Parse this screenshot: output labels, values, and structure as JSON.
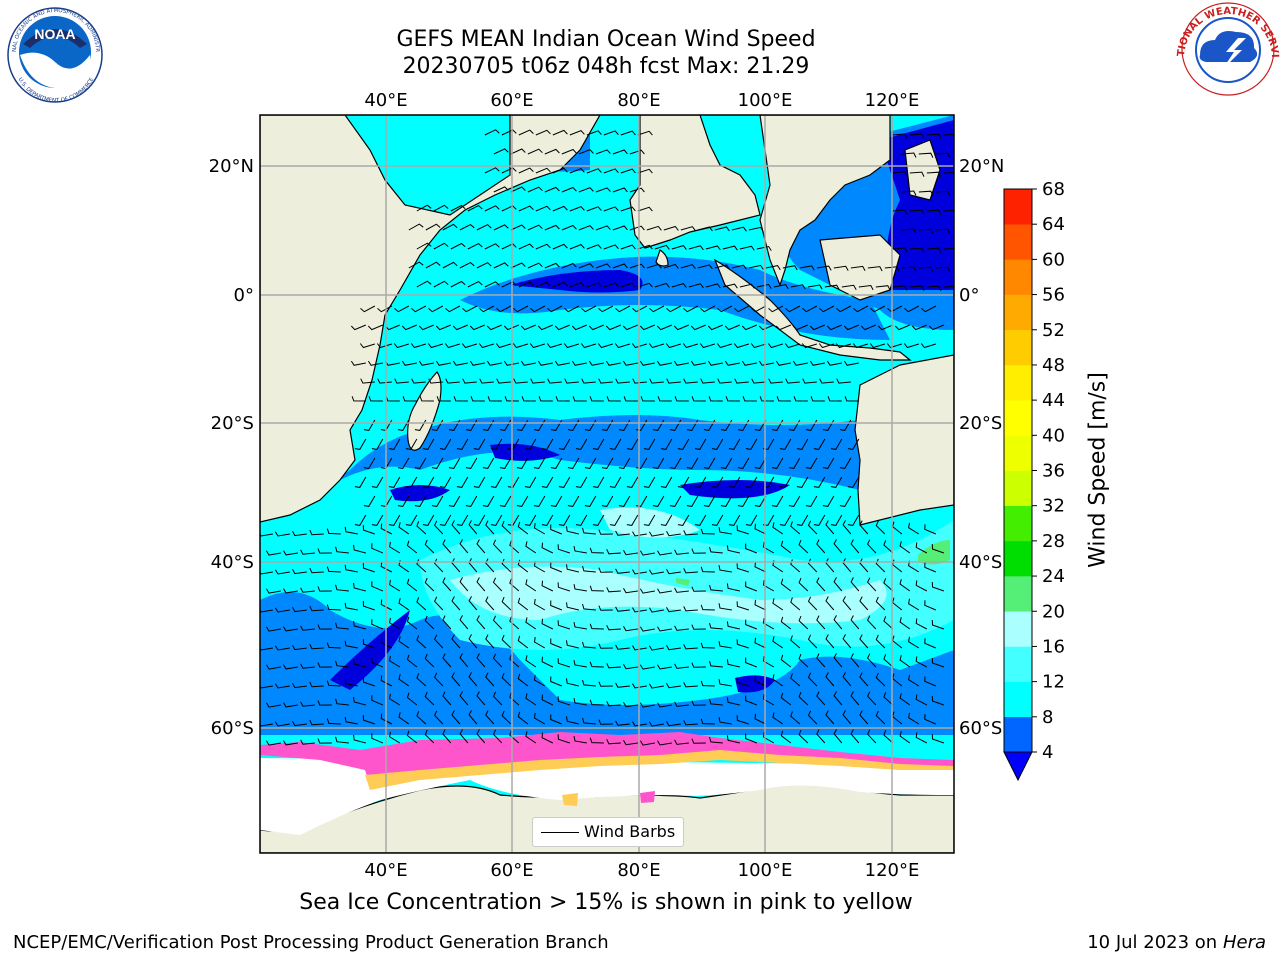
{
  "title": {
    "line1": "GEFS MEAN Indian Ocean Wind Speed",
    "line2": "20230705 t06z 048h fcst   Max: 21.29"
  },
  "map": {
    "lon_labels": [
      "40°E",
      "60°E",
      "80°E",
      "100°E",
      "120°E"
    ],
    "lat_labels": [
      "20°N",
      "0°",
      "20°S",
      "40°S",
      "60°S"
    ],
    "lon_range": [
      20,
      130
    ],
    "lat_range": [
      -70,
      27
    ],
    "colors": {
      "land": "#eeeedd",
      "ocean_base": "#00ffff",
      "wind_4_8": "#0088ff",
      "wind_below_4": "#0000dd",
      "wind_12_16": "#44ffff",
      "wind_16_20": "#aaffff",
      "wind_20_24": "#55ee77",
      "sea_ice": "#ff55cc",
      "ice_edge": "#ffcc55"
    }
  },
  "legend": {
    "label": "Wind Barbs"
  },
  "colorbar": {
    "label": "Wind Speed [m/s]",
    "ticks": [
      "4",
      "8",
      "12",
      "16",
      "20",
      "24",
      "28",
      "32",
      "36",
      "40",
      "44",
      "48",
      "52",
      "56",
      "60",
      "64",
      "68"
    ],
    "colors": [
      "#0066ff",
      "#00ffff",
      "#44ffff",
      "#aaffff",
      "#55ee77",
      "#00dd00",
      "#44ee00",
      "#ccff00",
      "#eeff00",
      "#ffff00",
      "#ffee00",
      "#ffcc00",
      "#ffaa00",
      "#ff8800",
      "#ff5500",
      "#ff2200"
    ],
    "under_color": "#0000ff"
  },
  "footnote": "Sea Ice Concentration > 15% is shown in pink to yellow",
  "credit": "NCEP/EMC/Verification Post Processing Product Generation Branch",
  "date": "10 Jul 2023 on ",
  "date_host": "Hera",
  "logos": {
    "noaa_text": "NOAA",
    "noaa_ring": "NATIONAL OCEANIC AND ATMOSPHERIC ADMINISTRATION",
    "noaa_ring_bottom": "U.S. DEPARTMENT OF COMMERCE",
    "nws_ring": "NATIONAL WEATHER SERVICE"
  }
}
